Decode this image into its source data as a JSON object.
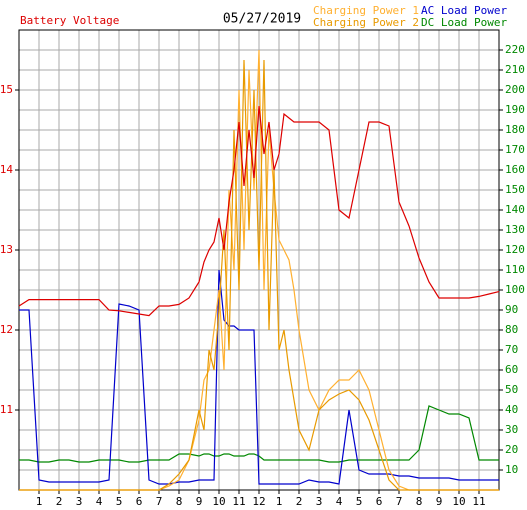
{
  "chart_data": {
    "type": "line",
    "title": "05/27/2019",
    "y_label": "Battery Voltage",
    "x": [
      0,
      0.5,
      1,
      1.5,
      2,
      2.5,
      3,
      3.5,
      4,
      4.5,
      5,
      5.5,
      6,
      6.5,
      7,
      7.5,
      8,
      8.5,
      9,
      9.25,
      9.5,
      9.75,
      10,
      10.25,
      10.5,
      10.75,
      11,
      11.25,
      11.5,
      11.75,
      12,
      12.25,
      12.5,
      12.75,
      13,
      13.25,
      13.5,
      13.75,
      14,
      14.5,
      15,
      15.5,
      16,
      16.5,
      17,
      17.5,
      18,
      18.5,
      19,
      19.5,
      20,
      20.5,
      21,
      21.5,
      22,
      22.5,
      23,
      23.5,
      24
    ],
    "xlim": [
      0,
      24
    ],
    "xticks": [
      1,
      2,
      3,
      4,
      5,
      6,
      7,
      8,
      9,
      10,
      11,
      12,
      {
        "value": 13,
        "label": "1"
      },
      {
        "value": 14,
        "label": "2"
      },
      {
        "value": 15,
        "label": "3"
      },
      {
        "value": 16,
        "label": "4"
      },
      {
        "value": 17,
        "label": "5"
      },
      {
        "value": 18,
        "label": "6"
      },
      {
        "value": 19,
        "label": "7"
      },
      {
        "value": 20,
        "label": "8"
      },
      {
        "value": 21,
        "label": "9"
      },
      {
        "value": 22,
        "label": "10"
      },
      {
        "value": 23,
        "label": "11"
      }
    ],
    "ylim": [
      10,
      15.75
    ],
    "yticks": [
      11,
      12,
      13,
      14,
      15
    ],
    "y2lim": [
      0,
      230
    ],
    "y2ticks": [
      10,
      20,
      30,
      40,
      50,
      60,
      70,
      80,
      90,
      100,
      110,
      120,
      130,
      140,
      150,
      160,
      170,
      180,
      190,
      200,
      210,
      220
    ],
    "grid": true,
    "series": [
      {
        "name": "Battery Voltage",
        "color": "#dd0000",
        "axis": "y",
        "values": [
          12.3,
          12.38,
          12.38,
          12.38,
          12.38,
          12.38,
          12.38,
          12.38,
          12.38,
          12.25,
          12.24,
          12.22,
          12.2,
          12.18,
          12.3,
          12.3,
          12.32,
          12.4,
          12.6,
          12.85,
          13.0,
          13.1,
          13.4,
          13.0,
          13.6,
          14.0,
          14.6,
          13.8,
          14.5,
          13.9,
          14.8,
          14.2,
          14.6,
          14.0,
          14.2,
          14.7,
          14.65,
          14.6,
          14.6,
          14.6,
          14.6,
          14.5,
          13.5,
          13.4,
          14.0,
          14.6,
          14.6,
          14.55,
          13.6,
          13.3,
          12.9,
          12.6,
          12.4,
          12.4,
          12.4,
          12.4,
          12.42,
          12.45,
          12.48
        ]
      },
      {
        "name": "Charging Power 1",
        "color": "#ffb030",
        "axis": "y2",
        "values": [
          0,
          0,
          0,
          0,
          0,
          0,
          0,
          0,
          0,
          0,
          0,
          0,
          0,
          0,
          0,
          2,
          5,
          15,
          35,
          55,
          60,
          80,
          100,
          60,
          150,
          110,
          200,
          120,
          210,
          150,
          220,
          100,
          180,
          150,
          125,
          120,
          115,
          100,
          80,
          50,
          40,
          50,
          55,
          55,
          60,
          50,
          30,
          10,
          2,
          0,
          0,
          0,
          0,
          0,
          0,
          0,
          0,
          0,
          0
        ]
      },
      {
        "name": "Charging Power 2",
        "color": "#e89a00",
        "axis": "y2",
        "values": [
          0,
          0,
          0,
          0,
          0,
          0,
          0,
          0,
          0,
          0,
          0,
          0,
          0,
          0,
          0,
          3,
          8,
          15,
          40,
          30,
          70,
          60,
          90,
          130,
          70,
          180,
          100,
          215,
          130,
          200,
          110,
          215,
          80,
          160,
          70,
          80,
          60,
          45,
          30,
          20,
          40,
          45,
          48,
          50,
          45,
          35,
          20,
          5,
          0,
          0,
          0,
          0,
          0,
          0,
          0,
          0,
          0,
          0,
          0
        ]
      },
      {
        "name": "AC Load Power",
        "color": "#0000cc",
        "axis": "y2",
        "values": [
          90,
          90,
          5,
          4,
          4,
          4,
          4,
          4,
          4,
          5,
          93,
          92,
          90,
          5,
          3,
          3,
          4,
          4,
          5,
          5,
          5,
          5,
          110,
          85,
          82,
          82,
          80,
          80,
          80,
          80,
          3,
          3,
          3,
          3,
          3,
          3,
          3,
          3,
          3,
          5,
          4,
          4,
          3,
          40,
          10,
          8,
          8,
          8,
          7,
          7,
          6,
          6,
          6,
          6,
          5,
          5,
          5,
          5,
          5
        ]
      },
      {
        "name": "DC Load Power",
        "color": "#008800",
        "axis": "y2",
        "values": [
          15,
          15,
          14,
          14,
          15,
          15,
          14,
          14,
          15,
          15,
          15,
          14,
          14,
          15,
          15,
          15,
          18,
          18,
          17,
          18,
          18,
          17,
          17,
          18,
          18,
          17,
          17,
          17,
          18,
          18,
          17,
          15,
          15,
          15,
          15,
          15,
          15,
          15,
          15,
          15,
          15,
          14,
          14,
          15,
          15,
          15,
          15,
          15,
          15,
          15,
          20,
          42,
          40,
          38,
          38,
          36,
          15,
          15,
          15
        ]
      }
    ]
  }
}
